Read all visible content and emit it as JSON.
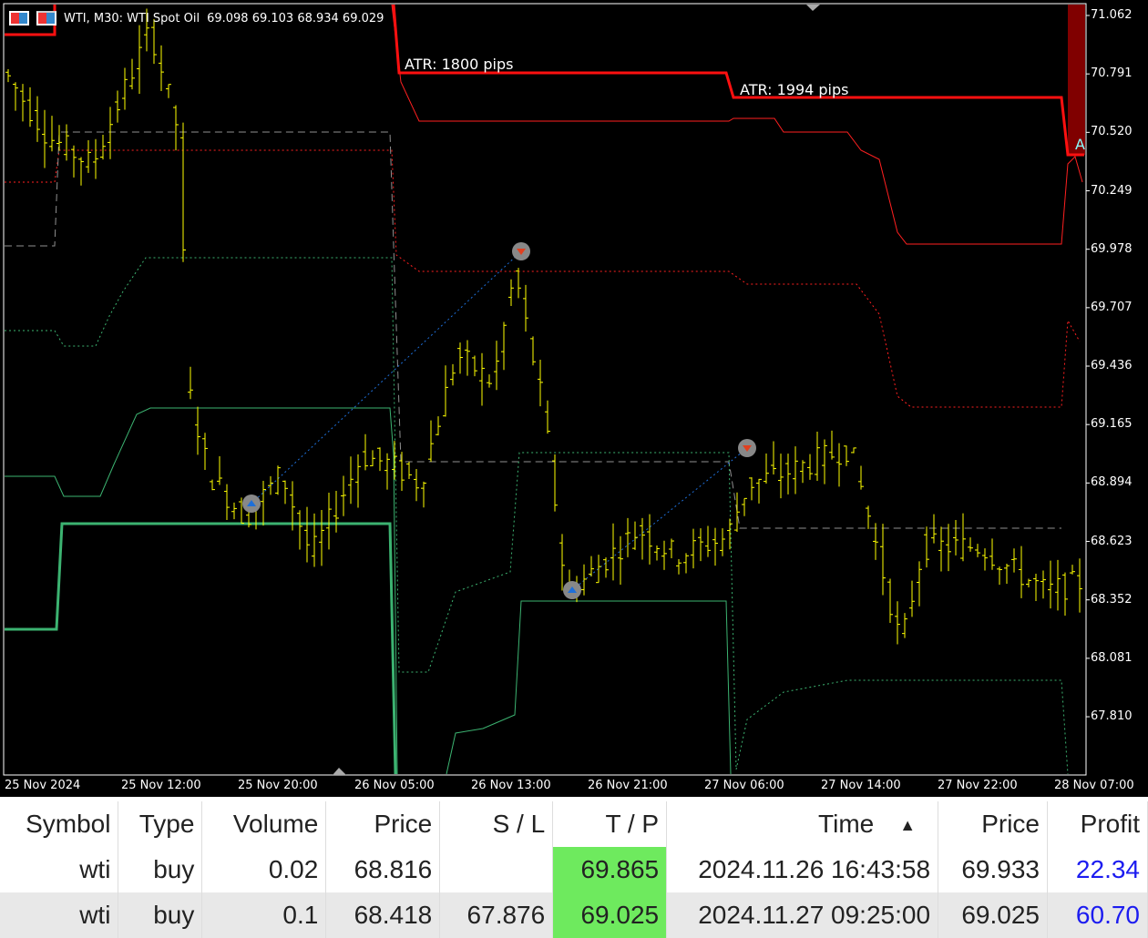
{
  "header": {
    "title": "WTI, M30:  WTI Spot Oil",
    "ohlc": "69.098 69.103 68.934 69.029",
    "icons": [
      "chart-grid-icon",
      "chart-save-icon"
    ]
  },
  "labels": {
    "atr1": "ATR: 1800 pips",
    "atr2": "ATR: 1994 pips",
    "edge_marker": "A"
  },
  "price_axis": [
    "71.062",
    "70.791",
    "70.520",
    "70.249",
    "69.978",
    "69.707",
    "69.436",
    "69.165",
    "68.894",
    "68.623",
    "68.352",
    "68.081",
    "67.810"
  ],
  "time_axis": [
    "25 Nov 2024",
    "25 Nov 12:00",
    "25 Nov 20:00",
    "26 Nov 05:00",
    "26 Nov 13:00",
    "26 Nov 21:00",
    "27 Nov 06:00",
    "27 Nov 14:00",
    "27 Nov 22:00",
    "28 Nov 07:00"
  ],
  "colors": {
    "bars": "#ffff00",
    "resistance": "#ff0000",
    "support": "#3cb371",
    "background": "#000000",
    "tp_cell": "#6eea5e",
    "profit": "#1c1cf0"
  },
  "chart_data": {
    "type": "ohlc",
    "price_range": [
      67.6,
      71.1
    ],
    "approx_path": [
      [
        0,
        70.8
      ],
      [
        6,
        70.5
      ],
      [
        12,
        70.37
      ],
      [
        20,
        71.0
      ],
      [
        24,
        70.5
      ],
      [
        25,
        69.36
      ],
      [
        28,
        68.94
      ],
      [
        33,
        68.73
      ],
      [
        38,
        68.94
      ],
      [
        42,
        68.56
      ],
      [
        44,
        68.68
      ],
      [
        49,
        69.02
      ],
      [
        53,
        68.98
      ],
      [
        57,
        68.89
      ],
      [
        62,
        69.49
      ],
      [
        67,
        69.36
      ],
      [
        70,
        69.87
      ],
      [
        74,
        69.23
      ],
      [
        77,
        68.39
      ],
      [
        79,
        68.43
      ],
      [
        87,
        68.68
      ],
      [
        92,
        68.56
      ],
      [
        99,
        68.64
      ],
      [
        102,
        68.89
      ],
      [
        107,
        68.94
      ],
      [
        116,
        69.06
      ],
      [
        119,
        68.68
      ],
      [
        123,
        68.14
      ],
      [
        126,
        68.6
      ],
      [
        134,
        68.6
      ],
      [
        137,
        68.52
      ],
      [
        143,
        68.39
      ],
      [
        147,
        68.43
      ]
    ],
    "trades": [
      {
        "type": "buy",
        "open": 68.816,
        "close": 69.933
      },
      {
        "type": "buy",
        "open": 68.418,
        "close": 69.025
      }
    ]
  },
  "table": {
    "columns": [
      "Symbol",
      "Type",
      "Volume",
      "Price",
      "S / L",
      "T / P",
      "Time",
      "Price",
      "Profit"
    ],
    "sort_arrow": "▲",
    "rows": [
      [
        "wti",
        "buy",
        "0.02",
        "68.816",
        "",
        "69.865",
        "2024.11.26 16:43:58",
        "69.933",
        "22.34"
      ],
      [
        "wti",
        "buy",
        "0.1",
        "68.418",
        "67.876",
        "69.025",
        "2024.11.27 09:25:00",
        "69.025",
        "60.70"
      ]
    ]
  }
}
